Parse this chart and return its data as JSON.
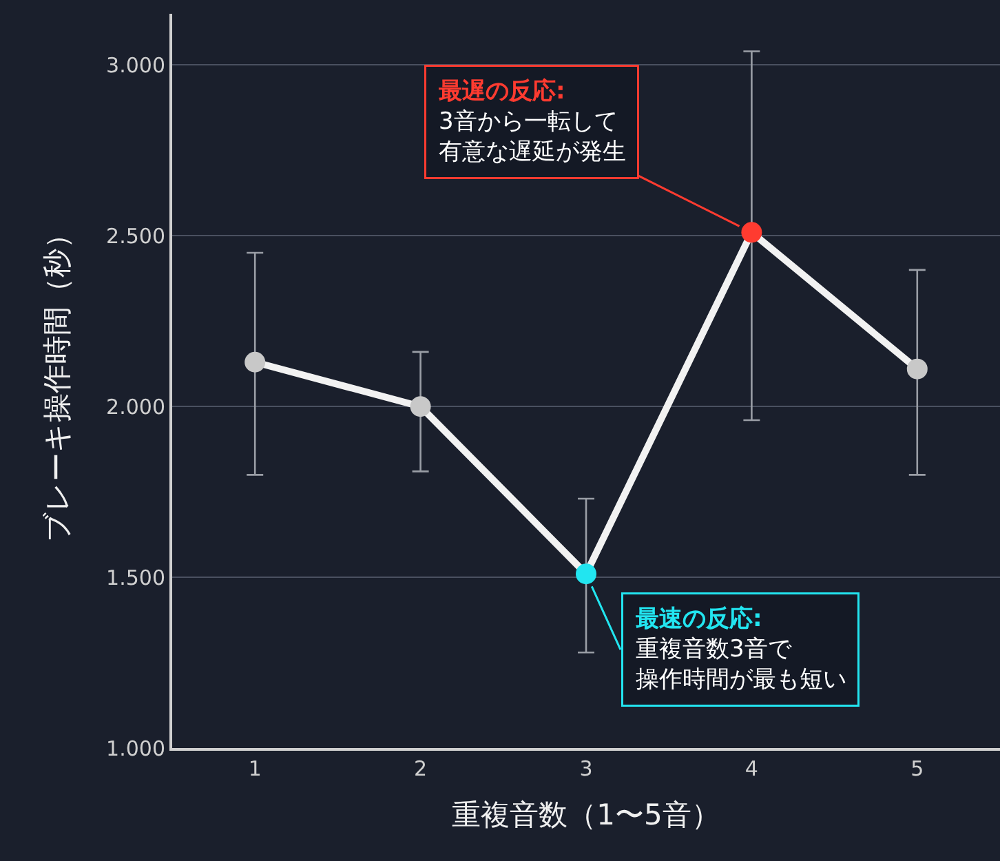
{
  "chart_data": {
    "type": "line",
    "xlabel": "重複音数（1〜5音）",
    "ylabel": "ブレーキ操作時間（秒）",
    "x": [
      1,
      2,
      3,
      4,
      5
    ],
    "values": [
      2.13,
      2.0,
      1.51,
      2.51,
      2.11
    ],
    "errors": [
      [
        1.8,
        2.45
      ],
      [
        1.81,
        2.16
      ],
      [
        1.28,
        1.73
      ],
      [
        1.96,
        3.04
      ],
      [
        1.8,
        2.4
      ]
    ],
    "color": "#f2f2f2",
    "colors": [
      "#c8c8c8",
      "#c8c8c8",
      "#22e5f0",
      "#ff3b30",
      "#c8c8c8"
    ],
    "marker": "circle",
    "xlim": [
      0.5,
      5.5
    ],
    "xticks": [
      1,
      2,
      3,
      4,
      5
    ],
    "ylim": [
      1.0,
      3.15
    ],
    "yticks": [
      {
        "value": 1.0,
        "label": "1.000"
      },
      {
        "value": 1.5,
        "label": "1.500"
      },
      {
        "value": 2.0,
        "label": "2.000"
      },
      {
        "value": 2.5,
        "label": "2.500"
      },
      {
        "value": 3.0,
        "label": "3.000"
      }
    ],
    "grid": "y",
    "annotations": [
      "最遅の反応:",
      "3音から一転して",
      {
        "text": "有意な遅延が発生",
        "x": 4,
        "y": 2.51
      },
      "最速の反応:",
      "重複音数3音で",
      {
        "text": "操作時間が最も短い",
        "x": 3,
        "y": 1.51
      }
    ]
  }
}
